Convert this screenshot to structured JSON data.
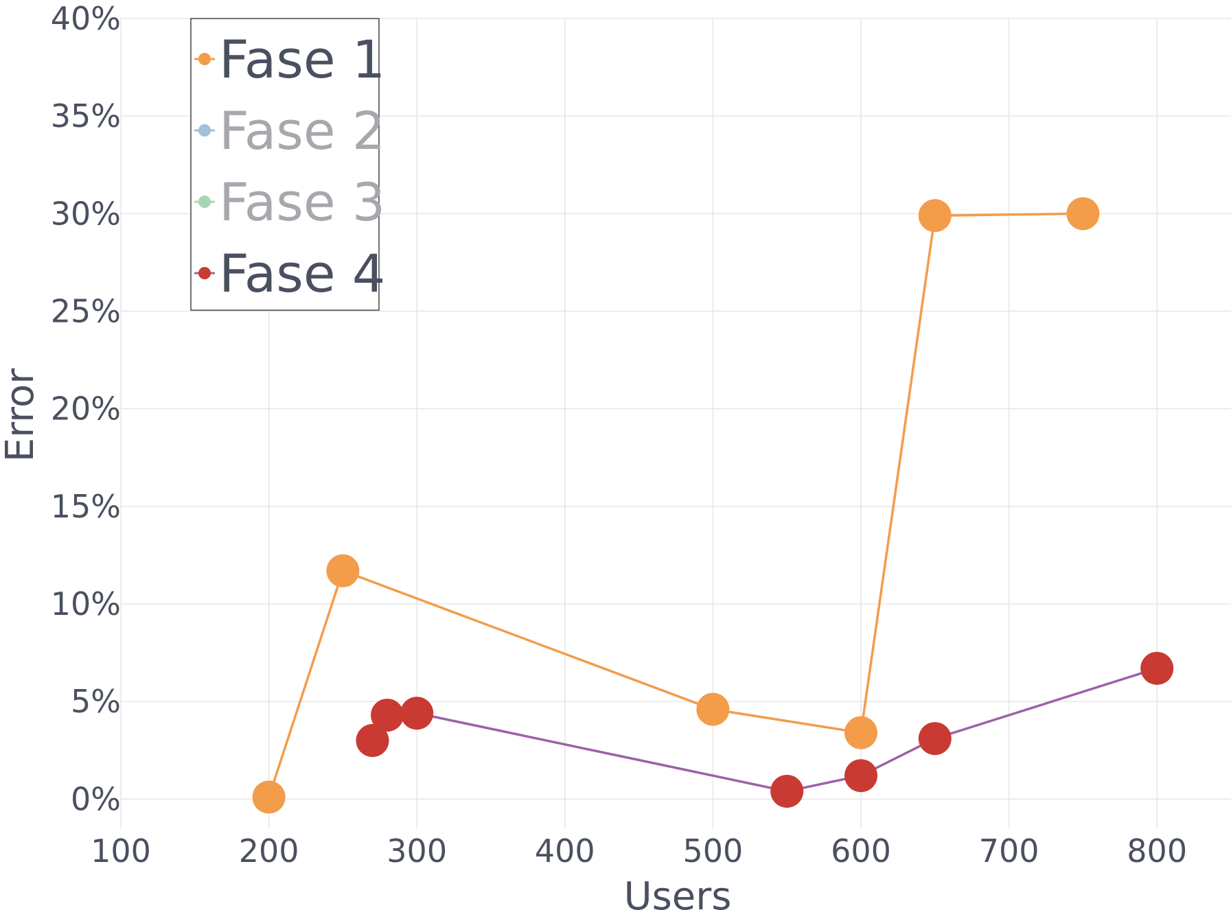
{
  "chart_data": {
    "type": "line",
    "title": "",
    "xlabel": "Users",
    "ylabel": "Error",
    "xlim": [
      100,
      850
    ],
    "ylim": [
      -1.5,
      40
    ],
    "x_ticks": [
      100,
      200,
      300,
      400,
      500,
      600,
      700,
      800
    ],
    "x_tick_labels": [
      "100",
      "200",
      "300",
      "400",
      "500",
      "600",
      "700",
      "800"
    ],
    "y_ticks": [
      0,
      5,
      10,
      15,
      20,
      25,
      30,
      35,
      40
    ],
    "y_tick_labels": [
      "0%",
      "5%",
      "10%",
      "15%",
      "20%",
      "25%",
      "30%",
      "35%",
      "40%"
    ],
    "grid": true,
    "legend_position": "top-left",
    "series": [
      {
        "name": "Fase 1",
        "visible": true,
        "line_color": "#f39c4a",
        "marker_color": "#f39c4a",
        "points": [
          {
            "x": 200,
            "y": 0.1
          },
          {
            "x": 250,
            "y": 11.7
          },
          {
            "x": 500,
            "y": 4.6
          },
          {
            "x": 600,
            "y": 3.4
          },
          {
            "x": 650,
            "y": 29.9
          },
          {
            "x": 750,
            "y": 30.0
          }
        ]
      },
      {
        "name": "Fase 2",
        "visible": false,
        "line_color": "#a3bfd9",
        "marker_color": "#a3bfd9",
        "points": []
      },
      {
        "name": "Fase 3",
        "visible": false,
        "line_color": "#a8d5b3",
        "marker_color": "#a8d5b3",
        "points": []
      },
      {
        "name": "Fase 4",
        "visible": true,
        "line_color": "#9b62a6",
        "marker_color": "#c93a32",
        "points": [
          {
            "x": 270,
            "y": 3.0
          },
          {
            "x": 280,
            "y": 4.3
          },
          {
            "x": 300,
            "y": 4.4
          },
          {
            "x": 550,
            "y": 0.4
          },
          {
            "x": 600,
            "y": 1.2
          },
          {
            "x": 650,
            "y": 3.1
          },
          {
            "x": 800,
            "y": 6.7
          }
        ]
      }
    ]
  },
  "colors": {
    "tick_text": "#4a5060",
    "legend_text_active": "#4a5060",
    "legend_text_hidden": "#a6a8ad",
    "grid": "#e6e6e6"
  }
}
